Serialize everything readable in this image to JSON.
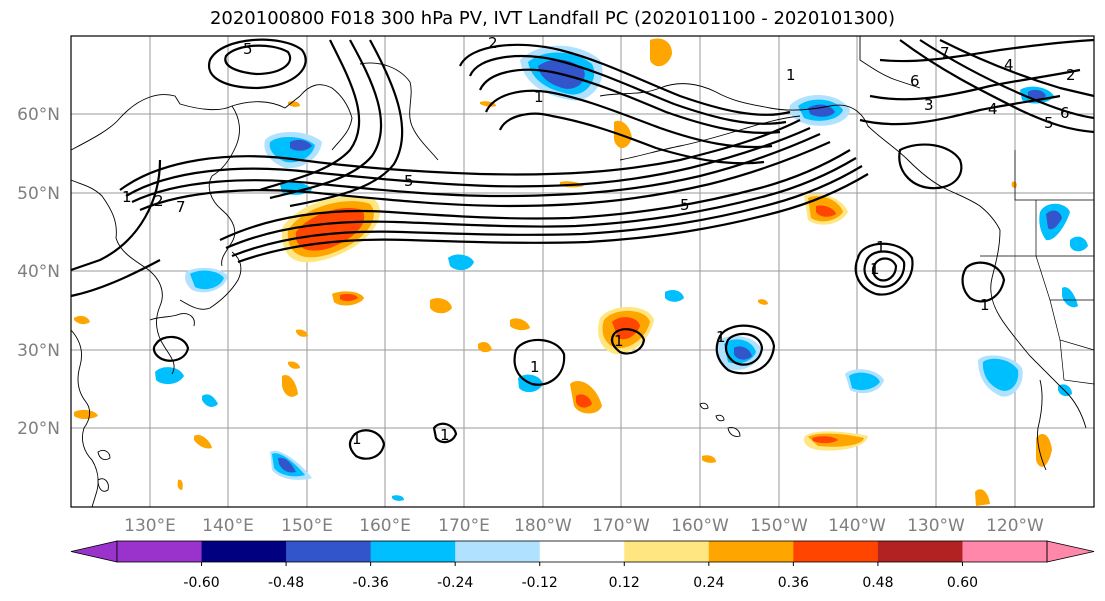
{
  "title": "2020100800 F018 300 hPa PV, IVT Landfall PC (2020101100 - 2020101300)",
  "lat_labels": [
    "60°N",
    "50°N",
    "40°N",
    "30°N",
    "20°N"
  ],
  "lon_labels": [
    "130°E",
    "140°E",
    "150°E",
    "160°E",
    "170°E",
    "180°W",
    "170°W",
    "160°W",
    "150°W",
    "140°W",
    "130°W",
    "120°W"
  ],
  "colorbar": {
    "colors": [
      "#9933cc",
      "#000080",
      "#3355cc",
      "#00bfff",
      "#b0e2ff",
      "#ffffff",
      "#ffe680",
      "#ffa500",
      "#ff4500",
      "#b22222",
      "#ff88aa"
    ],
    "tick_labels": [
      "-0.60",
      "-0.48",
      "-0.36",
      "-0.24",
      "-0.12",
      "0.12",
      "0.24",
      "0.36",
      "0.48",
      "0.60"
    ]
  },
  "contour_labels": [
    "5",
    "2",
    "1",
    "7",
    "6",
    "4",
    "5",
    "1",
    "7",
    "2",
    "5",
    "1",
    "2",
    "1",
    "1",
    "1",
    "1",
    "1",
    "1",
    "3",
    "6",
    "4",
    "5",
    "1",
    "1"
  ],
  "colors": {
    "neg_strong": "#3355cc",
    "neg_mid": "#00bfff",
    "neg_light": "#b0e2ff",
    "pos_light": "#ffe680",
    "pos_mid": "#ffa500",
    "pos_strong": "#ff4500",
    "contour": "#000000",
    "grid": "#9a9a9a"
  }
}
